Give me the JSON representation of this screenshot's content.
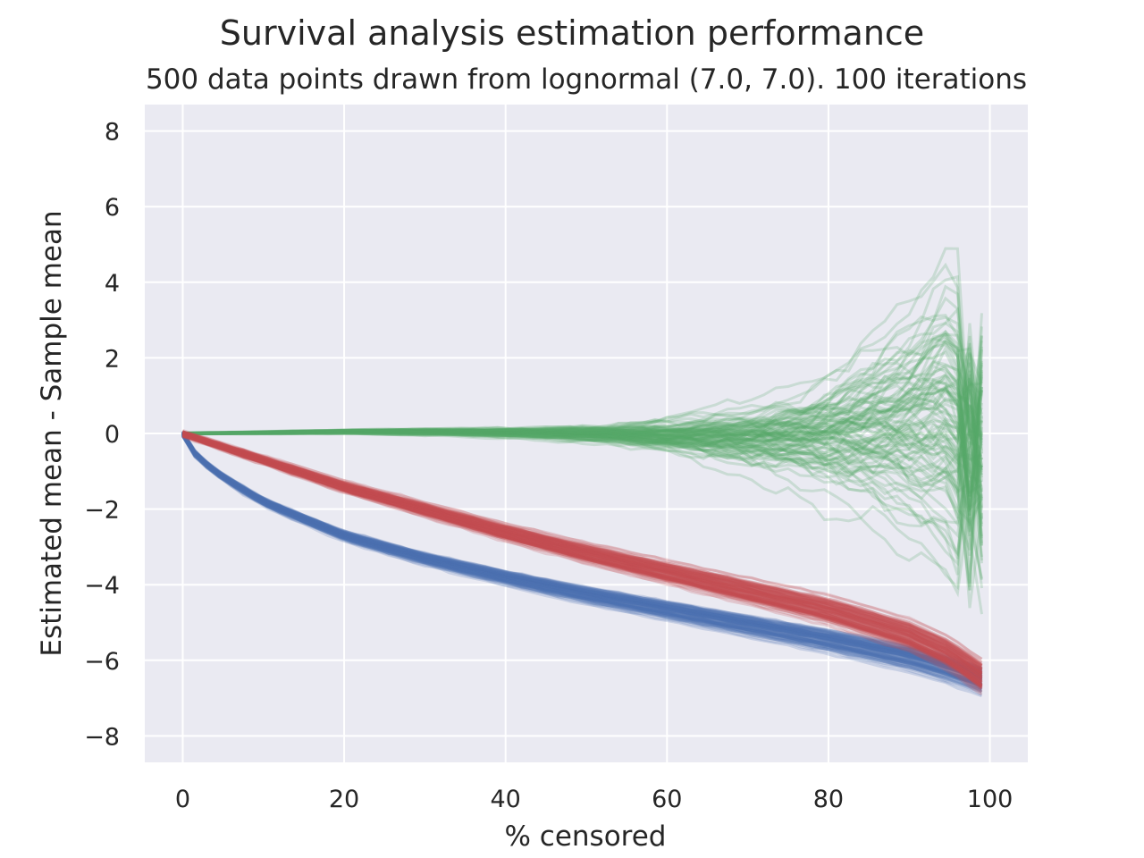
{
  "chart_data": {
    "type": "line",
    "title": "Survival analysis estimation performance",
    "subtitle": "500 data points drawn from lognormal (7.0, 7.0). 100 iterations",
    "xlabel": "% censored",
    "ylabel": "Estimated mean - Sample mean",
    "xlim": [
      -4.7,
      104.7
    ],
    "ylim": [
      -8.7,
      8.7
    ],
    "xticks": [
      0,
      20,
      40,
      60,
      80,
      100
    ],
    "xtick_labels": [
      "0",
      "20",
      "40",
      "60",
      "80",
      "100"
    ],
    "yticks": [
      8,
      6,
      4,
      2,
      0,
      -2,
      -4,
      -6,
      -8
    ],
    "ytick_labels": [
      "8",
      "6",
      "4",
      "2",
      "0",
      "−2",
      "−4",
      "−6",
      "−8"
    ],
    "grid": true,
    "iterations": 100,
    "series": [
      {
        "color": "#4c72b0",
        "x": [
          0,
          1,
          2,
          5,
          10,
          20,
          30,
          40,
          50,
          60,
          70,
          80,
          90,
          95,
          99
        ],
        "values": [
          0,
          -0.4,
          -0.65,
          -1.15,
          -1.8,
          -2.7,
          -3.3,
          -3.8,
          -4.25,
          -4.65,
          -5.05,
          -5.45,
          -5.9,
          -6.2,
          -6.5
        ],
        "spread_start": 0.05,
        "spread_end": 0.25
      },
      {
        "color": "#c44e52",
        "x": [
          0,
          5,
          10,
          20,
          30,
          40,
          50,
          60,
          70,
          80,
          90,
          95,
          99
        ],
        "values": [
          0,
          -0.35,
          -0.7,
          -1.4,
          -2.0,
          -2.6,
          -3.15,
          -3.65,
          -4.15,
          -4.65,
          -5.3,
          -5.8,
          -6.4
        ],
        "spread_start": 0.05,
        "spread_end": 0.3
      },
      {
        "color": "#55a868",
        "x": [
          0,
          10,
          20,
          30,
          40,
          50,
          60,
          70,
          80,
          90,
          95,
          99
        ],
        "values": [
          0,
          0.02,
          0.05,
          0.05,
          0.03,
          0.0,
          -0.03,
          -0.05,
          0.1,
          0.5,
          0.8,
          -0.5
        ],
        "spread_start": 0.02,
        "spread_end": 6.0
      }
    ]
  }
}
